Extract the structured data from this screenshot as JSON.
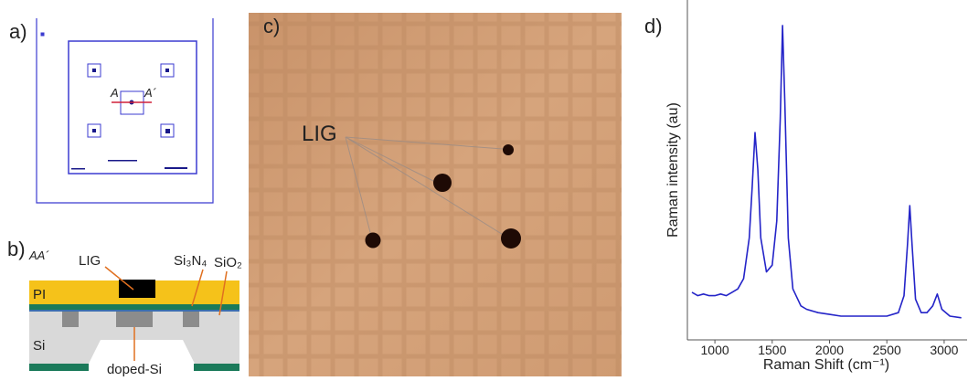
{
  "panels": {
    "a": {
      "label": "a)",
      "marker_a": "A",
      "marker_a2": "A´"
    },
    "b": {
      "label": "b)",
      "section": "AA´",
      "lig": "LIG",
      "nitride": "Si₃N₄",
      "oxide": "SiO₂",
      "pi": "PI",
      "si": "Si",
      "doped": "doped-Si"
    },
    "c": {
      "label": "c)",
      "lig": "LIG"
    },
    "d": {
      "label": "d)"
    }
  },
  "chart_data": {
    "type": "line",
    "xlabel": "Raman Shift (cm⁻¹)",
    "ylabel": "Raman intensity (au)",
    "xlim": [
      760,
      3200
    ],
    "ylim": [
      0,
      100
    ],
    "xticks": [
      1000,
      1500,
      2000,
      2500,
      3000
    ],
    "series": [
      {
        "color": "#2424c8",
        "x": [
          800,
          850,
          900,
          950,
          1000,
          1050,
          1100,
          1150,
          1200,
          1250,
          1300,
          1325,
          1350,
          1375,
          1400,
          1450,
          1500,
          1540,
          1570,
          1590,
          1610,
          1640,
          1680,
          1750,
          1800,
          1900,
          2000,
          2100,
          2200,
          2300,
          2400,
          2500,
          2600,
          2650,
          2680,
          2700,
          2720,
          2750,
          2800,
          2850,
          2900,
          2940,
          2980,
          3050,
          3150
        ],
        "values": [
          14,
          13,
          13.5,
          13,
          13,
          13.5,
          13,
          14,
          15,
          18,
          30,
          45,
          61,
          50,
          30,
          20,
          22,
          35,
          65,
          92.5,
          70,
          30,
          15,
          10,
          9,
          8,
          7.5,
          7,
          7,
          7,
          7,
          7,
          8,
          13,
          28,
          39.5,
          28,
          12,
          8,
          8,
          10,
          13.5,
          9,
          7,
          6.5
        ]
      }
    ]
  }
}
